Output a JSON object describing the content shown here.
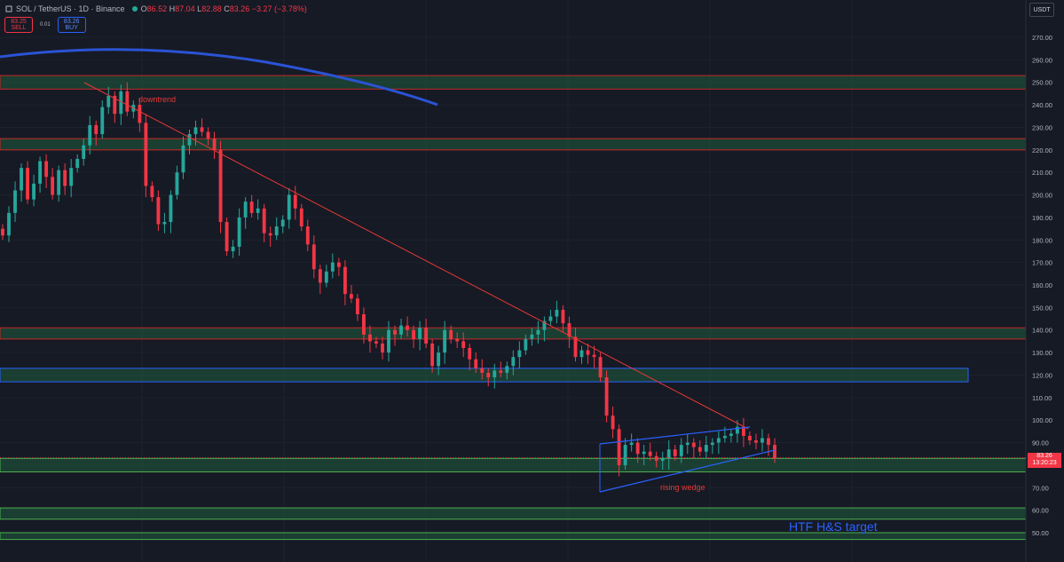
{
  "header": {
    "symbol": "SOL / TetherUS · 1D · Binance",
    "ohlc": [
      {
        "label": "O",
        "value": "86.52"
      },
      {
        "label": "H",
        "value": "87.04"
      },
      {
        "label": "L",
        "value": "82.88"
      },
      {
        "label": "C",
        "value": "83.26"
      },
      {
        "label": "",
        "value": "−3.27 (−3.78%)"
      }
    ]
  },
  "trade": {
    "sell_price": "83.25",
    "sell_label": "SELL",
    "spread": "0.01",
    "buy_price": "83.26",
    "buy_label": "BUY"
  },
  "currency_button": "USDT",
  "last_price": {
    "price": "83.26",
    "countdown": "13:20:23"
  },
  "colors": {
    "background": "#161a25",
    "up": "#26a69a",
    "down": "#f23645",
    "zone_fill": "#1f5c3c",
    "zone_red": "#c62828",
    "zone_green": "#4caf50",
    "zone_blue": "#2962ff",
    "annotation_red": "#e53935",
    "annotation_blue": "#2962ff"
  },
  "chart_data": {
    "type": "candlestick",
    "y_axis": {
      "min": 45,
      "max": 277,
      "ticks": [
        50,
        60,
        70,
        80,
        90,
        100,
        110,
        120,
        130,
        140,
        150,
        160,
        170,
        180,
        190,
        200,
        210,
        220,
        230,
        240,
        250,
        260,
        270
      ]
    },
    "series": [
      {
        "name": "SOL/USDT 1D",
        "close": [
          182,
          192,
          202,
          212,
          198,
          205,
          215,
          208,
          200,
          211,
          204,
          212,
          216,
          222,
          231,
          227,
          239,
          244,
          236,
          246,
          237,
          240,
          232,
          204,
          199,
          187,
          188,
          200,
          210,
          222,
          227,
          230,
          228,
          225,
          220,
          188,
          175,
          177,
          190,
          197,
          192,
          194,
          183,
          182,
          186,
          189,
          200,
          194,
          186,
          178,
          167,
          161,
          166,
          170,
          168,
          156,
          154,
          147,
          138,
          135,
          134,
          130,
          140,
          138,
          142,
          140,
          136,
          141,
          134,
          124,
          130,
          140,
          136,
          135,
          132,
          127,
          123,
          121,
          119,
          122,
          121,
          124,
          128,
          131,
          136,
          138,
          140,
          144,
          146,
          149,
          143,
          137,
          128,
          131,
          129,
          128,
          119,
          102,
          96,
          80,
          89,
          90,
          85,
          86,
          84,
          82,
          83,
          87,
          84,
          89,
          90,
          88,
          86,
          89,
          90,
          92,
          93,
          94,
          97,
          93,
          91,
          90,
          92,
          89,
          83
        ]
      }
    ],
    "zones": [
      {
        "low": 247,
        "high": 253,
        "border": "red"
      },
      {
        "low": 220,
        "high": 225,
        "border": "red"
      },
      {
        "low": 136,
        "high": 141,
        "border": "red"
      },
      {
        "low": 117,
        "high": 123,
        "border": "blue"
      },
      {
        "low": 77,
        "high": 83,
        "border": "green"
      },
      {
        "low": 56,
        "high": 61,
        "border": "green"
      },
      {
        "low": 47,
        "high": 50,
        "border": "green"
      }
    ],
    "annotations": [
      "downtrend",
      "rising wedge",
      "HTF H&S target"
    ]
  }
}
